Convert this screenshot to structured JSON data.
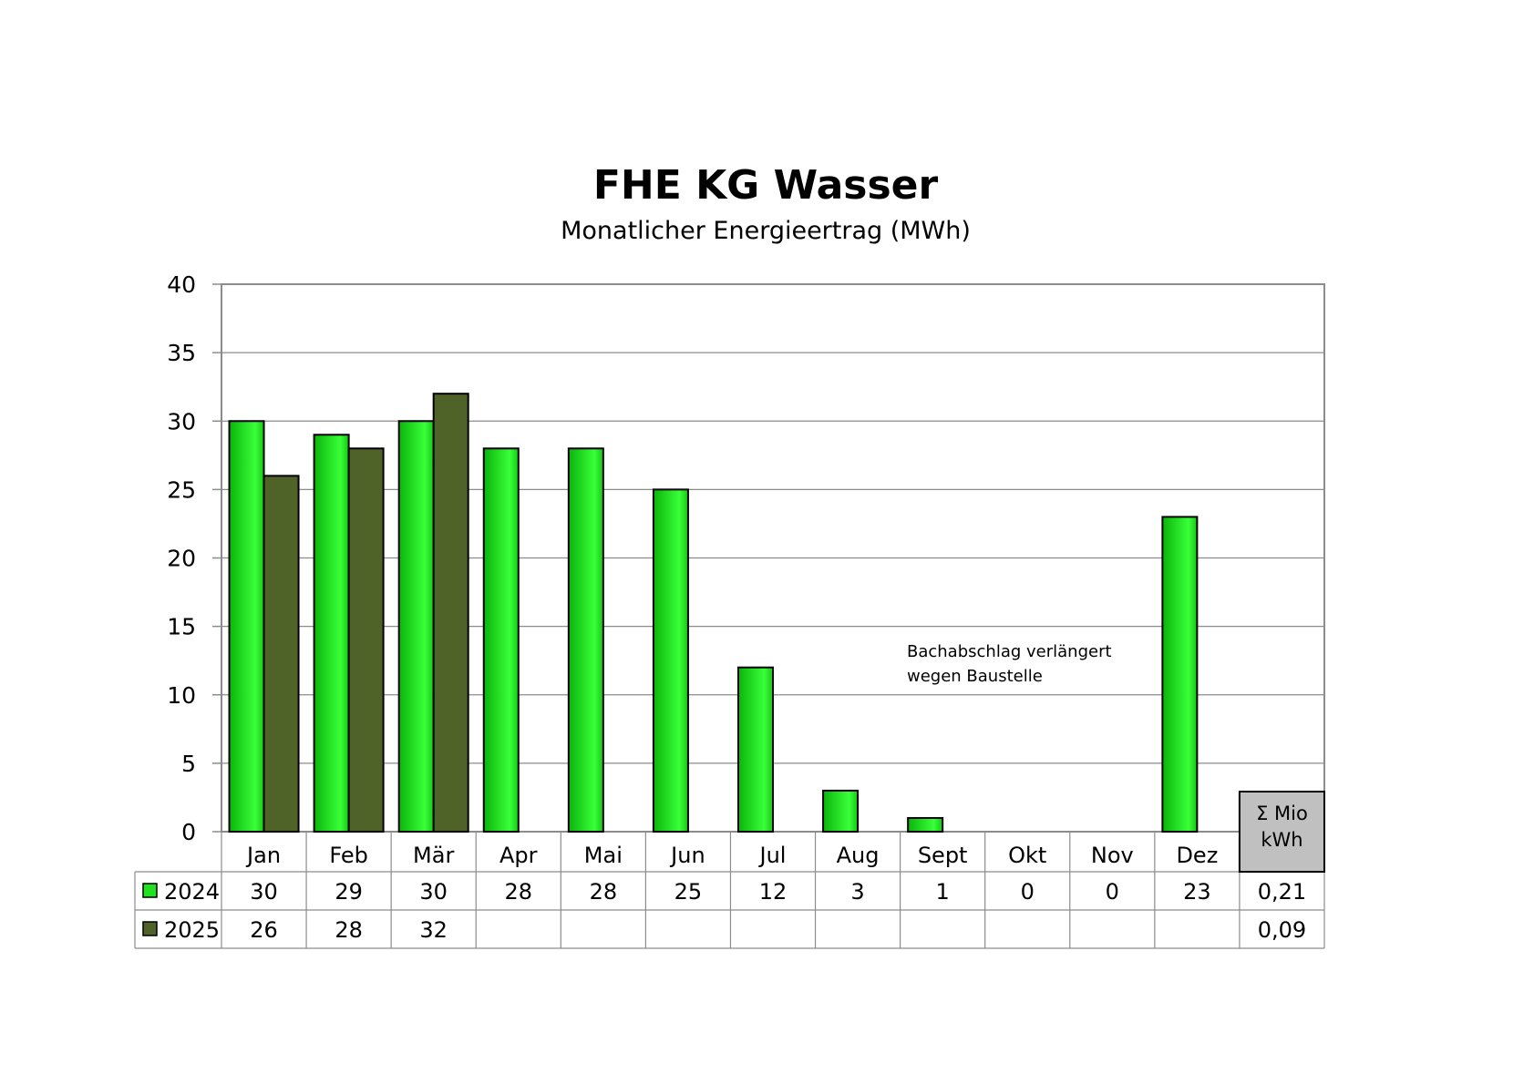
{
  "chart_data": {
    "type": "bar",
    "title": "FHE KG Wasser",
    "subtitle": "Monatlicher Energieertrag (MWh)",
    "categories": [
      "Jan",
      "Feb",
      "Mär",
      "Apr",
      "Mai",
      "Jun",
      "Jul",
      "Aug",
      "Sept",
      "Okt",
      "Nov",
      "Dez"
    ],
    "series": [
      {
        "name": "2024",
        "values": [
          30,
          29,
          30,
          28,
          28,
          25,
          12,
          3,
          1,
          0,
          0,
          23
        ],
        "color": "#22e022",
        "table": [
          "30",
          "29",
          "30",
          "28",
          "28",
          "25",
          "12",
          "3",
          "1",
          "0",
          "0",
          "23"
        ],
        "sum": "0,21"
      },
      {
        "name": "2025",
        "values": [
          26,
          28,
          32,
          null,
          null,
          null,
          null,
          null,
          null,
          null,
          null,
          null
        ],
        "color": "#4f6228",
        "table": [
          "26",
          "28",
          "32",
          "",
          "",
          "",
          "",
          "",
          "",
          "",
          "",
          ""
        ],
        "sum": "0,09"
      }
    ],
    "ylim": [
      0,
      40
    ],
    "yticks": [
      0,
      5,
      10,
      15,
      20,
      25,
      30,
      35,
      40
    ],
    "grid": true,
    "legend": "data-table",
    "sum_header": [
      "Σ Mio",
      "kWh"
    ],
    "annotation": [
      "Bachabschlag verlängert",
      "wegen Baustelle"
    ]
  }
}
